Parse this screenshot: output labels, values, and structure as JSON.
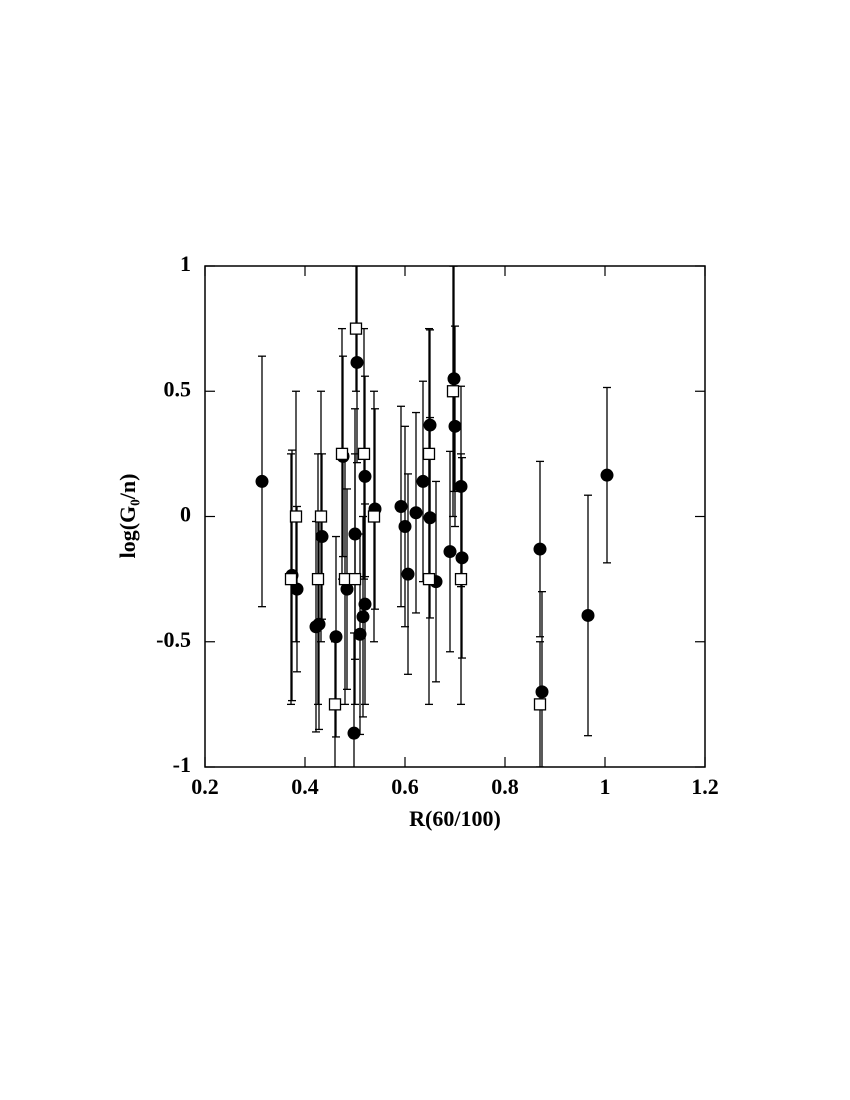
{
  "chart_data": {
    "type": "scatter",
    "xlabel": "R(60/100)",
    "ylabel": "log(G₀/n)",
    "xlim": [
      0.2,
      1.2
    ],
    "xticks": [
      0.2,
      0.4,
      0.6,
      0.8,
      1,
      1.2
    ],
    "ylim": [
      -1,
      1
    ],
    "yticks": [
      -1,
      -0.5,
      0,
      0.5,
      1
    ],
    "series": [
      {
        "marker": "circle",
        "color": "#000000",
        "x": [
          0.314,
          0.374,
          0.384,
          0.434,
          0.428,
          0.422,
          0.462,
          0.476,
          0.484,
          0.498,
          0.5,
          0.504,
          0.51,
          0.516,
          0.52,
          0.52,
          0.54,
          0.592,
          0.6,
          0.606,
          0.622,
          0.636,
          0.65,
          0.65,
          0.662,
          0.69,
          0.698,
          0.7,
          0.712,
          0.714,
          0.87,
          0.874,
          0.966,
          1.004
        ],
        "values": [
          0.14,
          -0.235,
          -0.29,
          -0.08,
          -0.43,
          -0.44,
          -0.48,
          0.24,
          -0.29,
          -0.865,
          -0.07,
          0.615,
          -0.47,
          -0.4,
          -0.35,
          0.16,
          0.03,
          0.04,
          -0.04,
          -0.23,
          0.015,
          0.14,
          0.365,
          -0.005,
          -0.26,
          -0.14,
          0.55,
          0.36,
          0.12,
          -0.165,
          -0.13,
          -0.7,
          -0.395,
          0.165
        ],
        "errors": [
          0.5,
          0.5,
          0.33,
          0.33,
          0.42,
          0.42,
          0.4,
          0.4,
          0.4,
          0.4,
          0.5,
          0.4,
          0.4,
          0.4,
          0.4,
          0.4,
          0.4,
          0.4,
          0.4,
          0.4,
          0.4,
          0.4,
          0.38,
          0.4,
          0.4,
          0.4,
          0.45,
          0.4,
          0.4,
          0.4,
          0.35,
          0.4,
          0.48,
          0.35
        ]
      },
      {
        "marker": "square",
        "color": "#000000",
        "x": [
          0.372,
          0.382,
          0.426,
          0.432,
          0.46,
          0.474,
          0.48,
          0.502,
          0.5,
          0.518,
          0.538,
          0.648,
          0.648,
          0.696,
          0.712,
          0.87
        ],
        "values": [
          -0.25,
          0,
          -0.25,
          0,
          -0.75,
          0.25,
          -0.25,
          0.75,
          -0.25,
          0.25,
          0,
          0.25,
          -0.25,
          0.5,
          -0.25,
          -0.75
        ],
        "errors": [
          0.5,
          0.5,
          0.5,
          0.5,
          0.25,
          0.5,
          0.5,
          0.25,
          0.5,
          0.5,
          0.5,
          0.5,
          0.5,
          0.5,
          0.5,
          0.25
        ]
      }
    ]
  }
}
